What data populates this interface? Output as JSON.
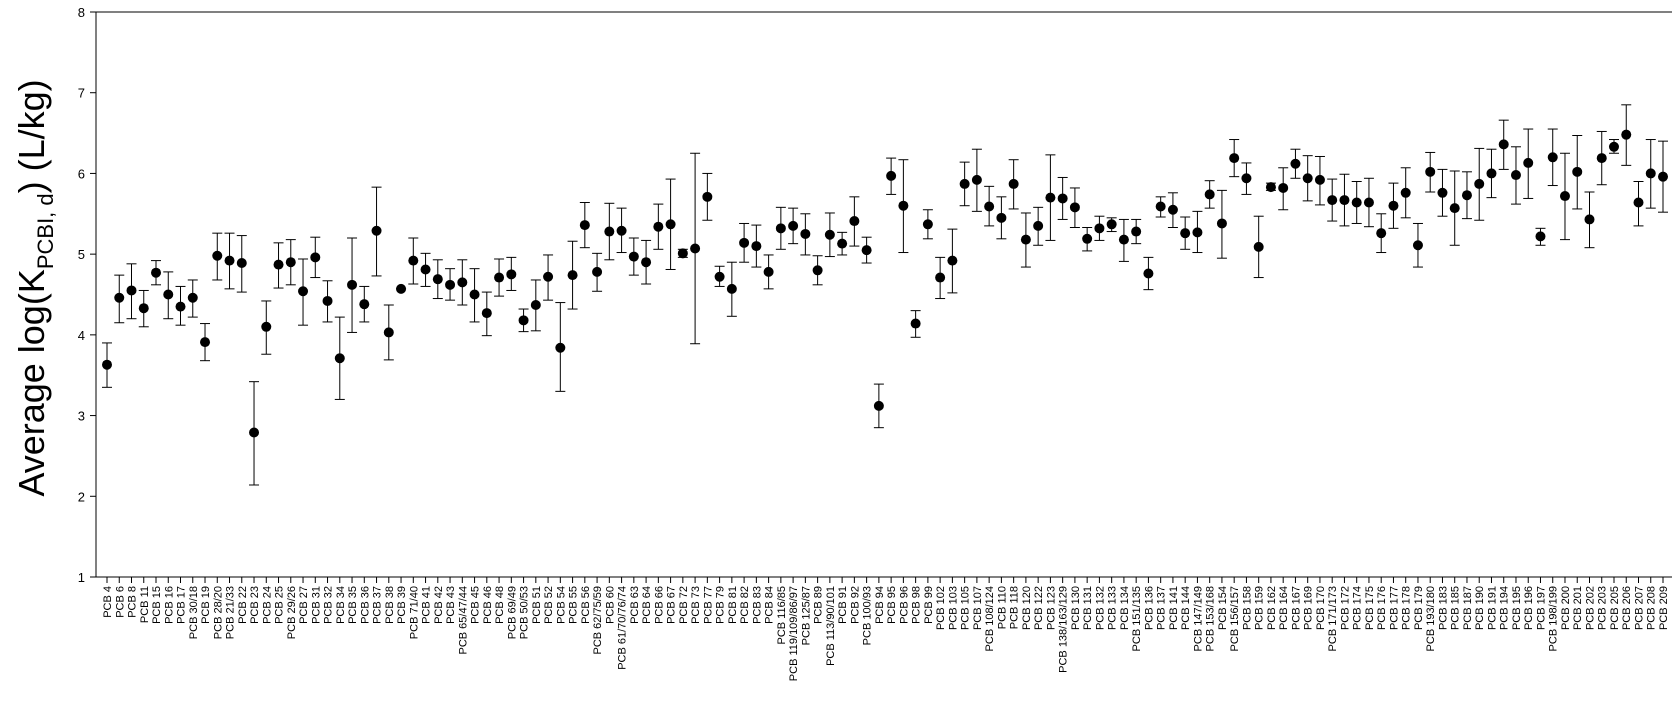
{
  "chart_data": {
    "type": "scatter",
    "ylabel": {
      "main": "Average log(K",
      "sub": "PCBI, d",
      "tail": ") (L/kg)"
    },
    "ylim": [
      1,
      8
    ],
    "yticks": [
      "1",
      "2",
      "3",
      "4",
      "5",
      "6",
      "7",
      "8"
    ],
    "grid": false,
    "legend": false,
    "colors": {
      "marker": "#000000",
      "axis": "#000000"
    },
    "points": [
      {
        "label": "PCB 4",
        "y": 3.63,
        "lo": 3.35,
        "hi": 3.9
      },
      {
        "label": "PCB 6",
        "y": 4.46,
        "lo": 4.15,
        "hi": 4.74
      },
      {
        "label": "PCB 8",
        "y": 4.55,
        "lo": 4.2,
        "hi": 4.88
      },
      {
        "label": "PCB 11",
        "y": 4.33,
        "lo": 4.1,
        "hi": 4.55
      },
      {
        "label": "PCB 15",
        "y": 4.77,
        "lo": 4.62,
        "hi": 4.92
      },
      {
        "label": "PCB 16",
        "y": 4.5,
        "lo": 4.2,
        "hi": 4.78
      },
      {
        "label": "PCB 17",
        "y": 4.35,
        "lo": 4.12,
        "hi": 4.6
      },
      {
        "label": "PCB 30/18",
        "y": 4.46,
        "lo": 4.22,
        "hi": 4.68
      },
      {
        "label": "PCB 19",
        "y": 3.91,
        "lo": 3.68,
        "hi": 4.14
      },
      {
        "label": "PCB 28/20",
        "y": 4.98,
        "lo": 4.68,
        "hi": 5.26
      },
      {
        "label": "PCB 21/33",
        "y": 4.92,
        "lo": 4.57,
        "hi": 5.26
      },
      {
        "label": "PCB 22",
        "y": 4.89,
        "lo": 4.53,
        "hi": 5.23
      },
      {
        "label": "PCB 23",
        "y": 2.79,
        "lo": 2.14,
        "hi": 3.42
      },
      {
        "label": "PCB 24",
        "y": 4.1,
        "lo": 3.76,
        "hi": 4.42
      },
      {
        "label": "PCB 25",
        "y": 4.87,
        "lo": 4.58,
        "hi": 5.14
      },
      {
        "label": "PCB 29/26",
        "y": 4.9,
        "lo": 4.62,
        "hi": 5.18
      },
      {
        "label": "PCB 27",
        "y": 4.54,
        "lo": 4.12,
        "hi": 4.94
      },
      {
        "label": "PCB 31",
        "y": 4.96,
        "lo": 4.71,
        "hi": 5.21
      },
      {
        "label": "PCB 32",
        "y": 4.42,
        "lo": 4.16,
        "hi": 4.67
      },
      {
        "label": "PCB 34",
        "y": 3.71,
        "lo": 3.2,
        "hi": 4.22
      },
      {
        "label": "PCB 35",
        "y": 4.62,
        "lo": 4.03,
        "hi": 5.2
      },
      {
        "label": "PCB 36",
        "y": 4.38,
        "lo": 4.16,
        "hi": 4.6
      },
      {
        "label": "PCB 37",
        "y": 5.29,
        "lo": 4.73,
        "hi": 5.83
      },
      {
        "label": "PCB 38",
        "y": 4.03,
        "lo": 3.69,
        "hi": 4.37
      },
      {
        "label": "PCB 39",
        "y": 4.57,
        "lo": 4.57,
        "hi": 4.57
      },
      {
        "label": "PCB 71/40",
        "y": 4.92,
        "lo": 4.63,
        "hi": 5.2
      },
      {
        "label": "PCB 41",
        "y": 4.81,
        "lo": 4.6,
        "hi": 5.01
      },
      {
        "label": "PCB 42",
        "y": 4.69,
        "lo": 4.45,
        "hi": 4.93
      },
      {
        "label": "PCB 43",
        "y": 4.62,
        "lo": 4.43,
        "hi": 4.82
      },
      {
        "label": "PCB 65/47/44",
        "y": 4.65,
        "lo": 4.37,
        "hi": 4.93
      },
      {
        "label": "PCB 45",
        "y": 4.5,
        "lo": 4.16,
        "hi": 4.82
      },
      {
        "label": "PCB 46",
        "y": 4.27,
        "lo": 3.99,
        "hi": 4.53
      },
      {
        "label": "PCB 48",
        "y": 4.71,
        "lo": 4.48,
        "hi": 4.94
      },
      {
        "label": "PCB 69/49",
        "y": 4.75,
        "lo": 4.55,
        "hi": 4.96
      },
      {
        "label": "PCB 50/53",
        "y": 4.18,
        "lo": 4.04,
        "hi": 4.32
      },
      {
        "label": "PCB 51",
        "y": 4.37,
        "lo": 4.05,
        "hi": 4.68
      },
      {
        "label": "PCB 52",
        "y": 4.72,
        "lo": 4.43,
        "hi": 4.99
      },
      {
        "label": "PCB 54",
        "y": 3.84,
        "lo": 3.3,
        "hi": 4.4
      },
      {
        "label": "PCB 55",
        "y": 4.74,
        "lo": 4.32,
        "hi": 5.16
      },
      {
        "label": "PCB 56",
        "y": 5.36,
        "lo": 5.08,
        "hi": 5.64
      },
      {
        "label": "PCB 62/75/59",
        "y": 4.78,
        "lo": 4.54,
        "hi": 5.01
      },
      {
        "label": "PCB 60",
        "y": 5.28,
        "lo": 4.93,
        "hi": 5.63
      },
      {
        "label": "PCB 61/70/76/74",
        "y": 5.29,
        "lo": 5.02,
        "hi": 5.57
      },
      {
        "label": "PCB 63",
        "y": 4.97,
        "lo": 4.74,
        "hi": 5.2
      },
      {
        "label": "PCB 64",
        "y": 4.9,
        "lo": 4.63,
        "hi": 5.17
      },
      {
        "label": "PCB 66",
        "y": 5.34,
        "lo": 5.06,
        "hi": 5.62
      },
      {
        "label": "PCB 67",
        "y": 5.37,
        "lo": 4.81,
        "hi": 5.93
      },
      {
        "label": "PCB 72",
        "y": 5.01,
        "lo": 4.96,
        "hi": 5.06
      },
      {
        "label": "PCB 73",
        "y": 5.07,
        "lo": 3.89,
        "hi": 6.25
      },
      {
        "label": "PCB 77",
        "y": 5.71,
        "lo": 5.42,
        "hi": 6.0
      },
      {
        "label": "PCB 79",
        "y": 4.72,
        "lo": 4.6,
        "hi": 4.85
      },
      {
        "label": "PCB 81",
        "y": 4.57,
        "lo": 4.23,
        "hi": 4.9
      },
      {
        "label": "PCB 82",
        "y": 5.14,
        "lo": 4.9,
        "hi": 5.38
      },
      {
        "label": "PCB 83",
        "y": 5.1,
        "lo": 4.84,
        "hi": 5.36
      },
      {
        "label": "PCB 84",
        "y": 4.78,
        "lo": 4.57,
        "hi": 4.99
      },
      {
        "label": "PCB 116/85",
        "y": 5.32,
        "lo": 5.06,
        "hi": 5.58
      },
      {
        "label": "PCB 119/109/86/97",
        "y": 5.35,
        "lo": 5.13,
        "hi": 5.57
      },
      {
        "label": "PCB 125/87",
        "y": 5.25,
        "lo": 4.99,
        "hi": 5.5
      },
      {
        "label": "PCB 89",
        "y": 4.8,
        "lo": 4.62,
        "hi": 4.98
      },
      {
        "label": "PCB 113/90/101",
        "y": 5.24,
        "lo": 4.97,
        "hi": 5.51
      },
      {
        "label": "PCB 91",
        "y": 5.13,
        "lo": 4.99,
        "hi": 5.27
      },
      {
        "label": "PCB 92",
        "y": 5.41,
        "lo": 5.1,
        "hi": 5.71
      },
      {
        "label": "PCB 100/93",
        "y": 5.05,
        "lo": 4.89,
        "hi": 5.21
      },
      {
        "label": "PCB 94",
        "y": 3.12,
        "lo": 2.85,
        "hi": 3.39
      },
      {
        "label": "PCB 95",
        "y": 5.97,
        "lo": 5.74,
        "hi": 6.19
      },
      {
        "label": "PCB 96",
        "y": 5.6,
        "lo": 5.02,
        "hi": 6.17
      },
      {
        "label": "PCB 98",
        "y": 4.14,
        "lo": 3.97,
        "hi": 4.3
      },
      {
        "label": "PCB 99",
        "y": 5.37,
        "lo": 5.19,
        "hi": 5.55
      },
      {
        "label": "PCB 102",
        "y": 4.71,
        "lo": 4.45,
        "hi": 4.96
      },
      {
        "label": "PCB 103",
        "y": 4.92,
        "lo": 4.52,
        "hi": 5.31
      },
      {
        "label": "PCB 105",
        "y": 5.87,
        "lo": 5.6,
        "hi": 6.14
      },
      {
        "label": "PCB 107",
        "y": 5.92,
        "lo": 5.53,
        "hi": 6.3
      },
      {
        "label": "PCB 108/124",
        "y": 5.59,
        "lo": 5.35,
        "hi": 5.84
      },
      {
        "label": "PCB 110",
        "y": 5.45,
        "lo": 5.19,
        "hi": 5.71
      },
      {
        "label": "PCB 118",
        "y": 5.87,
        "lo": 5.56,
        "hi": 6.17
      },
      {
        "label": "PCB 120",
        "y": 5.18,
        "lo": 4.84,
        "hi": 5.51
      },
      {
        "label": "PCB 122",
        "y": 5.35,
        "lo": 5.11,
        "hi": 5.58
      },
      {
        "label": "PCB 123",
        "y": 5.7,
        "lo": 5.17,
        "hi": 6.23
      },
      {
        "label": "PCB 138/163/129",
        "y": 5.69,
        "lo": 5.43,
        "hi": 5.95
      },
      {
        "label": "PCB 130",
        "y": 5.58,
        "lo": 5.33,
        "hi": 5.82
      },
      {
        "label": "PCB 131",
        "y": 5.19,
        "lo": 5.04,
        "hi": 5.33
      },
      {
        "label": "PCB 132",
        "y": 5.32,
        "lo": 5.17,
        "hi": 5.47
      },
      {
        "label": "PCB 133",
        "y": 5.37,
        "lo": 5.28,
        "hi": 5.45
      },
      {
        "label": "PCB 134",
        "y": 5.18,
        "lo": 4.91,
        "hi": 5.43
      },
      {
        "label": "PCB 151/135",
        "y": 5.28,
        "lo": 5.13,
        "hi": 5.43
      },
      {
        "label": "PCB 136",
        "y": 4.76,
        "lo": 4.56,
        "hi": 4.96
      },
      {
        "label": "PCB 137",
        "y": 5.59,
        "lo": 5.46,
        "hi": 5.71
      },
      {
        "label": "PCB 141",
        "y": 5.55,
        "lo": 5.33,
        "hi": 5.76
      },
      {
        "label": "PCB 144",
        "y": 5.26,
        "lo": 5.06,
        "hi": 5.46
      },
      {
        "label": "PCB 147/149",
        "y": 5.27,
        "lo": 5.02,
        "hi": 5.53
      },
      {
        "label": "PCB 153/168",
        "y": 5.74,
        "lo": 5.57,
        "hi": 5.91
      },
      {
        "label": "PCB 154",
        "y": 5.38,
        "lo": 4.95,
        "hi": 5.79
      },
      {
        "label": "PCB 156/157",
        "y": 6.19,
        "lo": 5.96,
        "hi": 6.42
      },
      {
        "label": "PCB 158",
        "y": 5.94,
        "lo": 5.74,
        "hi": 6.13
      },
      {
        "label": "PCB 159",
        "y": 5.09,
        "lo": 4.71,
        "hi": 5.47
      },
      {
        "label": "PCB 162",
        "y": 5.83,
        "lo": 5.79,
        "hi": 5.88
      },
      {
        "label": "PCB 164",
        "y": 5.82,
        "lo": 5.55,
        "hi": 6.07
      },
      {
        "label": "PCB 167",
        "y": 6.12,
        "lo": 5.94,
        "hi": 6.3
      },
      {
        "label": "PCB 169",
        "y": 5.94,
        "lo": 5.66,
        "hi": 6.22
      },
      {
        "label": "PCB 170",
        "y": 5.92,
        "lo": 5.61,
        "hi": 6.21
      },
      {
        "label": "PCB 171/173",
        "y": 5.67,
        "lo": 5.41,
        "hi": 5.93
      },
      {
        "label": "PCB 172",
        "y": 5.67,
        "lo": 5.35,
        "hi": 5.99
      },
      {
        "label": "PCB 174",
        "y": 5.64,
        "lo": 5.38,
        "hi": 5.9
      },
      {
        "label": "PCB 175",
        "y": 5.64,
        "lo": 5.34,
        "hi": 5.94
      },
      {
        "label": "PCB 176",
        "y": 5.26,
        "lo": 5.02,
        "hi": 5.5
      },
      {
        "label": "PCB 177",
        "y": 5.6,
        "lo": 5.32,
        "hi": 5.88
      },
      {
        "label": "PCB 178",
        "y": 5.76,
        "lo": 5.45,
        "hi": 6.07
      },
      {
        "label": "PCB 179",
        "y": 5.11,
        "lo": 4.84,
        "hi": 5.38
      },
      {
        "label": "PCB 193/180",
        "y": 6.02,
        "lo": 5.77,
        "hi": 6.26
      },
      {
        "label": "PCB 183",
        "y": 5.76,
        "lo": 5.47,
        "hi": 6.05
      },
      {
        "label": "PCB 185",
        "y": 5.57,
        "lo": 5.11,
        "hi": 6.03
      },
      {
        "label": "PCB 187",
        "y": 5.73,
        "lo": 5.44,
        "hi": 6.02
      },
      {
        "label": "PCB 190",
        "y": 5.87,
        "lo": 5.42,
        "hi": 6.31
      },
      {
        "label": "PCB 191",
        "y": 6.0,
        "lo": 5.7,
        "hi": 6.3
      },
      {
        "label": "PCB 194",
        "y": 6.36,
        "lo": 6.05,
        "hi": 6.66
      },
      {
        "label": "PCB 195",
        "y": 5.98,
        "lo": 5.62,
        "hi": 6.33
      },
      {
        "label": "PCB 196",
        "y": 6.13,
        "lo": 5.69,
        "hi": 6.55
      },
      {
        "label": "PCB 197",
        "y": 5.22,
        "lo": 5.11,
        "hi": 5.32
      },
      {
        "label": "PCB 198/199",
        "y": 6.2,
        "lo": 5.85,
        "hi": 6.55
      },
      {
        "label": "PCB 200",
        "y": 5.72,
        "lo": 5.18,
        "hi": 6.25
      },
      {
        "label": "PCB 201",
        "y": 6.02,
        "lo": 5.56,
        "hi": 6.47
      },
      {
        "label": "PCB 202",
        "y": 5.43,
        "lo": 5.08,
        "hi": 5.77
      },
      {
        "label": "PCB 203",
        "y": 6.19,
        "lo": 5.86,
        "hi": 6.52
      },
      {
        "label": "PCB 205",
        "y": 6.33,
        "lo": 6.25,
        "hi": 6.42
      },
      {
        "label": "PCB 206",
        "y": 6.48,
        "lo": 6.1,
        "hi": 6.85
      },
      {
        "label": "PCB 207",
        "y": 5.64,
        "lo": 5.35,
        "hi": 5.9
      },
      {
        "label": "PCB 208",
        "y": 6.0,
        "lo": 5.57,
        "hi": 6.42
      },
      {
        "label": "PCB 209",
        "y": 5.96,
        "lo": 5.52,
        "hi": 6.4
      }
    ]
  }
}
